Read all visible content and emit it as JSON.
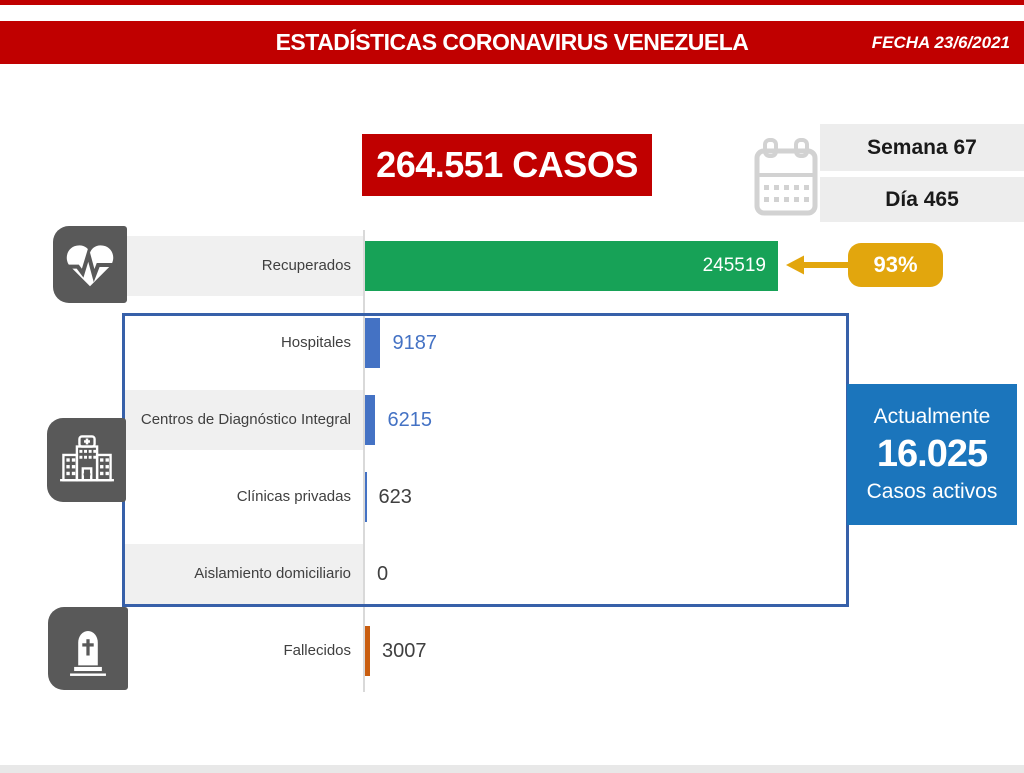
{
  "header": {
    "title": "ESTADÍSTICAS CORONAVIRUS VENEZUELA",
    "date_label": "FECHA 23/6/2021"
  },
  "totals": {
    "cases_label": "264.551 CASOS",
    "week_label": "Semana 67",
    "day_label": "Día 465"
  },
  "recovered_callout": {
    "percent_label": "93%"
  },
  "active_box": {
    "line1": "Actualmente",
    "value": "16.025",
    "line2": "Casos activos"
  },
  "icons": {
    "calendar": "calendar-icon",
    "recovered": "heartbeat-icon",
    "hospitalization": "hospital-icon",
    "deaths": "tombstone-icon"
  },
  "colors": {
    "banner_red": "#C00000",
    "green_bar": "#17A257",
    "blue_bar": "#4472C4",
    "orange_bar": "#C95E10",
    "yellow_accent": "#E2A60D",
    "active_blue": "#1B75BC",
    "frame_blue": "#3760A9",
    "icon_gray": "#595959",
    "stripe_gray": "#F0F0F0"
  },
  "chart_data": {
    "type": "bar",
    "orientation": "horizontal",
    "title": "",
    "categories": [
      "Recuperados",
      "Hospitales",
      "Centros de Diagnóstico Integral",
      "Clínicas privadas",
      "Aislamiento domiciliario",
      "Fallecidos"
    ],
    "values": [
      245519,
      9187,
      6215,
      623,
      0,
      3007
    ],
    "value_labels": [
      "245519",
      "9187",
      "6215",
      "623",
      "0",
      "3007"
    ],
    "bar_colors": [
      "#17A257",
      "#4472C4",
      "#4472C4",
      "#4472C4",
      "#4472C4",
      "#C95E10"
    ],
    "value_label_colors": [
      "#FFFFFF",
      "#4472C4",
      "#4472C4",
      "#404040",
      "#404040",
      "#404040"
    ],
    "striped_rows": [
      0,
      2,
      4
    ],
    "xlim": [
      0,
      245519
    ],
    "grid": false,
    "legend": false
  }
}
